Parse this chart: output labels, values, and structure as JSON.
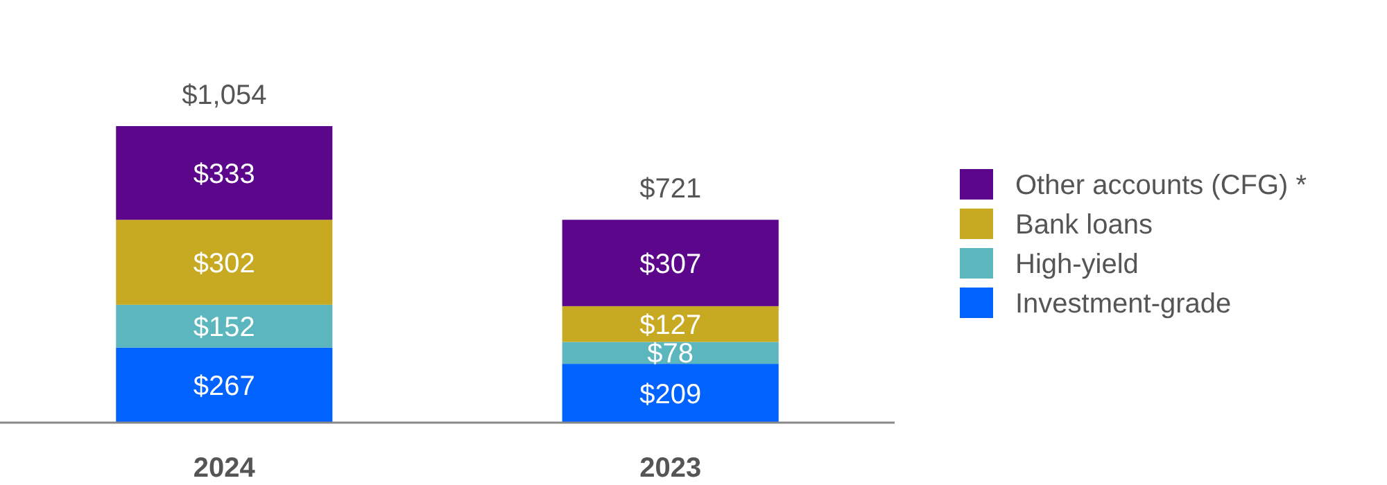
{
  "chart_data": {
    "type": "bar",
    "stacked": true,
    "categories": [
      "2024",
      "2023"
    ],
    "legend": "right",
    "series": [
      {
        "name": "Investment-grade",
        "color": "#0062ff",
        "values": [
          267,
          209
        ],
        "value_labels": [
          "$267",
          "$209"
        ]
      },
      {
        "name": "High-yield",
        "color": "#5cb6bd",
        "values": [
          152,
          78
        ],
        "value_labels": [
          "$152",
          "$78"
        ]
      },
      {
        "name": "Bank loans",
        "color": "#c8aa22",
        "values": [
          302,
          127
        ],
        "value_labels": [
          "$302",
          "$127"
        ]
      },
      {
        "name": "Other accounts (CFG) *",
        "color": "#5c068c",
        "values": [
          333,
          307
        ],
        "value_labels": [
          "$333",
          "$307"
        ]
      }
    ],
    "totals": [
      "$1,054",
      "$721"
    ]
  }
}
